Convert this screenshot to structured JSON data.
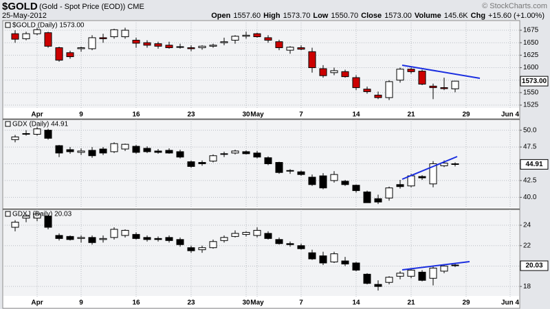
{
  "header": {
    "symbol": "$GOLD",
    "description": "(Gold - Spot Price (EOD)) CME",
    "date": "25-May-2012",
    "watermark": "© StockCharts.com",
    "quote": [
      {
        "label": "Open",
        "value": "1557.60"
      },
      {
        "label": "High",
        "value": "1573.70"
      },
      {
        "label": "Low",
        "value": "1550.70"
      },
      {
        "label": "Close",
        "value": "1573.00"
      },
      {
        "label": "Volume",
        "value": "145.6K"
      },
      {
        "label": "Chg",
        "value": "+15.60 (+1.00%)"
      }
    ]
  },
  "chart_data": [
    {
      "type": "candlestick",
      "title": "$GOLD (Daily) 1573.00",
      "last_label": "1573.00",
      "up_color": "#ffffff",
      "down_color": "#cc0000",
      "grid": true,
      "categories": [
        null,
        null,
        "Apr",
        null,
        null,
        null,
        "9",
        null,
        null,
        null,
        null,
        "16",
        null,
        null,
        null,
        null,
        "23",
        null,
        null,
        null,
        null,
        "30",
        "May",
        null,
        null,
        null,
        "7",
        null,
        null,
        null,
        null,
        "14",
        null,
        null,
        null,
        null,
        "21",
        null,
        null,
        null,
        null,
        "29",
        null,
        null,
        null,
        "Jun 4"
      ],
      "open": [
        1668,
        1658,
        1668,
        1670,
        1640,
        1630,
        1638,
        1638,
        1660,
        1662,
        1662,
        1655,
        1650,
        1648,
        1645,
        1642,
        1640,
        1640,
        1643,
        1650,
        1655,
        1663,
        1668,
        1660,
        1652,
        1635,
        1640,
        1632,
        1598,
        1590,
        1592,
        1580,
        1557,
        1545,
        1540,
        1575,
        1597,
        1593,
        1563,
        1560,
        1557.6,
        null,
        null,
        null,
        null,
        null
      ],
      "high": [
        1675,
        1672,
        1680,
        1672,
        1642,
        1634,
        1642,
        1665,
        1668,
        1678,
        1680,
        1660,
        1655,
        1652,
        1652,
        1648,
        1645,
        1645,
        1648,
        1660,
        1665,
        1672,
        1670,
        1665,
        1656,
        1643,
        1645,
        1640,
        1605,
        1600,
        1596,
        1585,
        1562,
        1552,
        1575,
        1600,
        1600,
        1596,
        1568,
        1580,
        1573.7,
        null,
        null,
        null,
        null,
        null
      ],
      "low": [
        1650,
        1655,
        1665,
        1640,
        1612,
        1618,
        1632,
        1635,
        1650,
        1658,
        1658,
        1640,
        1640,
        1638,
        1638,
        1638,
        1633,
        1636,
        1640,
        1645,
        1648,
        1658,
        1660,
        1650,
        1635,
        1628,
        1635,
        1590,
        1580,
        1585,
        1580,
        1555,
        1548,
        1537,
        1535,
        1570,
        1588,
        1565,
        1537,
        1555,
        1550.7,
        null,
        null,
        null,
        null,
        null
      ],
      "close": [
        1657,
        1668,
        1676,
        1643,
        1615,
        1622,
        1640,
        1660,
        1658,
        1676,
        1675,
        1649,
        1645,
        1643,
        1640,
        1642,
        1638,
        1643,
        1645,
        1652,
        1663,
        1665,
        1662,
        1655,
        1640,
        1641,
        1637,
        1600,
        1584,
        1594,
        1582,
        1560,
        1552,
        1540,
        1572,
        1597,
        1592,
        1567,
        1560,
        1558,
        1573,
        null,
        null,
        null,
        null,
        null
      ],
      "ylim": [
        1518.2,
        1694.3
      ],
      "yticks": [
        1525,
        1550,
        1575,
        1600,
        1625,
        1650,
        1675
      ]
    },
    {
      "type": "candlestick",
      "title": "GDX (Daily) 44.91",
      "last_label": "44.91",
      "up_color": "#ffffff",
      "down_color": "#000000",
      "grid": true,
      "open": [
        48.6,
        49.4,
        49.4,
        50.0,
        47.7,
        47.1,
        46.7,
        47.0,
        47.2,
        46.8,
        47.2,
        47.6,
        47.3,
        46.9,
        47.0,
        46.8,
        45.3,
        45.2,
        45.4,
        46.4,
        46.6,
        46.8,
        46.6,
        45.9,
        45.2,
        44.0,
        43.8,
        43.0,
        43.2,
        42.5,
        42.4,
        41.8,
        40.8,
        39.8,
        39.9,
        41.9,
        41.7,
        43.1,
        42.0,
        44.7,
        45.0,
        null,
        null,
        null,
        null,
        null
      ],
      "high": [
        49.3,
        50.0,
        50.5,
        50.2,
        47.8,
        47.5,
        47.3,
        47.5,
        47.5,
        48.2,
        48.0,
        47.8,
        47.6,
        47.2,
        47.3,
        47.1,
        45.5,
        45.5,
        46.4,
        46.8,
        47.1,
        47.0,
        46.9,
        46.1,
        45.3,
        44.2,
        44.0,
        43.4,
        43.6,
        43.9,
        42.6,
        41.9,
        41.0,
        40.4,
        41.6,
        42.6,
        43.5,
        43.3,
        45.4,
        45.5,
        45.2,
        null,
        null,
        null,
        null,
        null
      ],
      "low": [
        48.2,
        49.2,
        49.2,
        48.6,
        46.0,
        46.5,
        46.3,
        45.9,
        46.3,
        46.6,
        46.9,
        46.5,
        46.6,
        46.5,
        46.5,
        45.8,
        44.4,
        44.7,
        45.2,
        46.0,
        46.4,
        46.4,
        45.8,
        44.8,
        43.5,
        43.5,
        43.2,
        41.7,
        41.2,
        42.2,
        41.7,
        40.7,
        39.2,
        39.0,
        39.5,
        41.3,
        41.5,
        42.6,
        41.5,
        44.5,
        44.6,
        null,
        null,
        null,
        null,
        null
      ],
      "close": [
        49.0,
        49.5,
        50.2,
        48.8,
        46.6,
        46.8,
        46.9,
        46.2,
        46.6,
        48.0,
        47.9,
        46.7,
        46.8,
        46.7,
        46.6,
        46.0,
        44.6,
        45.0,
        46.2,
        46.5,
        46.9,
        46.5,
        46.0,
        45.0,
        43.7,
        43.9,
        43.4,
        41.9,
        41.4,
        43.4,
        41.9,
        41.0,
        39.2,
        39.3,
        41.4,
        41.6,
        43.2,
        42.9,
        45.0,
        45.1,
        44.91,
        null,
        null,
        null,
        null,
        null
      ],
      "ylim": [
        38.4,
        51.6
      ],
      "yticks": [
        {
          "value": 40,
          "label": "40.0"
        },
        42.5,
        {
          "value": 45,
          "label": "45.0"
        },
        47.5,
        {
          "value": 50,
          "label": "50.0"
        }
      ]
    },
    {
      "type": "candlestick",
      "title": "GDXJ (Daily) 20.03",
      "last_label": "20.03",
      "up_color": "#ffffff",
      "down_color": "#000000",
      "grid": true,
      "categories": [
        null,
        null,
        "Apr",
        null,
        null,
        null,
        "9",
        null,
        null,
        null,
        null,
        "16",
        null,
        null,
        null,
        null,
        "23",
        null,
        null,
        null,
        null,
        "30",
        "May",
        null,
        null,
        null,
        "7",
        null,
        null,
        null,
        null,
        "14",
        null,
        null,
        null,
        null,
        "21",
        null,
        null,
        null,
        null,
        "29",
        null,
        null,
        null,
        "Jun 4"
      ],
      "open": [
        23.8,
        24.7,
        24.7,
        24.9,
        23.0,
        22.9,
        22.7,
        22.8,
        22.6,
        22.8,
        23.0,
        23.1,
        22.8,
        22.7,
        22.8,
        22.6,
        21.8,
        21.6,
        21.8,
        22.5,
        22.9,
        23.1,
        23.0,
        23.2,
        22.6,
        22.2,
        22.0,
        21.3,
        21.0,
        20.4,
        20.5,
        20.3,
        19.2,
        18.2,
        18.4,
        19.0,
        19.0,
        19.4,
        18.8,
        19.5,
        20.1,
        null,
        null,
        null,
        null,
        null
      ],
      "high": [
        24.5,
        25.1,
        25.3,
        25.0,
        23.2,
        23.0,
        23.0,
        23.0,
        23.0,
        23.8,
        23.6,
        23.3,
        23.0,
        22.9,
        23.0,
        22.8,
        22.0,
        22.0,
        22.6,
        23.0,
        23.5,
        23.4,
        23.8,
        23.4,
        22.8,
        22.4,
        22.2,
        21.6,
        21.4,
        21.4,
        20.9,
        20.4,
        19.3,
        18.6,
        19.0,
        19.5,
        19.8,
        19.6,
        20.0,
        20.2,
        20.3,
        null,
        null,
        null,
        null,
        null
      ],
      "low": [
        23.4,
        24.3,
        24.4,
        23.6,
        22.5,
        22.5,
        22.3,
        22.1,
        22.3,
        22.6,
        22.8,
        22.6,
        22.4,
        22.4,
        22.3,
        21.9,
        21.3,
        21.3,
        21.7,
        22.3,
        22.8,
        22.9,
        22.8,
        22.6,
        22.1,
        21.9,
        21.6,
        20.6,
        20.1,
        20.3,
        20.0,
        19.5,
        18.2,
        17.6,
        18.2,
        18.7,
        18.8,
        18.5,
        18.1,
        19.3,
        19.9,
        null,
        null,
        null,
        null,
        null
      ],
      "close": [
        24.3,
        24.9,
        25.1,
        23.8,
        22.7,
        22.6,
        22.8,
        22.3,
        22.7,
        23.6,
        23.5,
        22.7,
        22.6,
        22.6,
        22.5,
        22.1,
        21.5,
        21.8,
        22.4,
        22.8,
        23.2,
        23.3,
        23.5,
        22.7,
        22.2,
        22.1,
        21.7,
        20.7,
        20.3,
        21.2,
        20.2,
        19.6,
        18.3,
        18.0,
        18.9,
        19.3,
        19.6,
        18.6,
        19.8,
        20.0,
        20.03,
        null,
        null,
        null,
        null,
        null
      ],
      "ylim": [
        17,
        25.55
      ],
      "yticks": [
        18,
        20,
        22,
        24
      ]
    }
  ]
}
